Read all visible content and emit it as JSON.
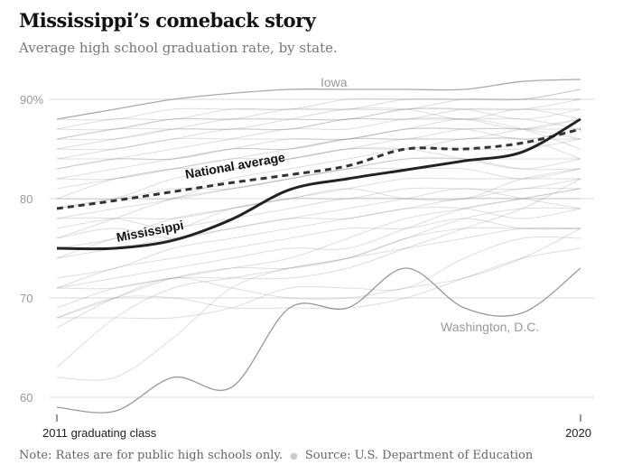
{
  "chart_data": {
    "type": "line",
    "title": "Mississippi’s comeback story",
    "subtitle": "Average high school graduation rate, by state.",
    "x": [
      2011,
      2012,
      2013,
      2014,
      2015,
      2016,
      2017,
      2018,
      2019,
      2020
    ],
    "x_tick_labels": [
      "2011 graduating class",
      "2020"
    ],
    "y_tick_labels": [
      "90%",
      "80",
      "70",
      "60"
    ],
    "y_ticks": [
      90,
      80,
      70,
      60
    ],
    "ylim": [
      57.5,
      93
    ],
    "grid": true,
    "highlighted": [
      {
        "name": "Mississippi",
        "label": "Mississippi",
        "values": [
          75,
          75,
          75.8,
          77.9,
          80.9,
          82,
          82.9,
          83.8,
          84.7,
          88
        ]
      },
      {
        "name": "National average",
        "label": "National average",
        "style": "dashed",
        "values": [
          79,
          79.8,
          80.7,
          81.6,
          82.4,
          83.3,
          85,
          85,
          85.6,
          87
        ]
      },
      {
        "name": "Iowa",
        "label": "Iowa",
        "values": [
          88,
          89,
          90,
          90.6,
          91,
          91,
          91,
          91,
          91.8,
          92
        ]
      },
      {
        "name": "Washington, D.C.",
        "label": "Washington, D.C.",
        "values": [
          59,
          58.6,
          62,
          61,
          69,
          69,
          73,
          69,
          68.5,
          73
        ]
      }
    ],
    "other_states": [
      [
        87,
        88,
        88,
        89,
        89,
        90,
        90,
        90,
        90,
        91
      ],
      [
        86,
        87,
        88,
        88,
        89,
        89,
        89,
        90,
        90,
        90
      ],
      [
        86,
        86,
        87,
        88,
        88,
        88,
        89,
        89,
        88,
        89
      ],
      [
        85,
        86,
        87,
        87,
        88,
        89,
        89,
        88,
        89,
        88
      ],
      [
        84,
        85,
        86,
        87,
        87,
        88,
        88,
        89,
        89,
        89
      ],
      [
        83,
        84,
        85,
        86,
        87,
        87,
        88,
        88,
        87,
        88
      ],
      [
        86,
        87,
        87,
        87,
        87,
        88,
        88,
        88,
        88,
        87
      ],
      [
        83,
        84,
        84,
        85,
        86,
        86,
        87,
        87,
        87,
        86
      ],
      [
        82,
        83,
        84,
        85,
        85,
        86,
        86,
        86,
        87,
        88
      ],
      [
        80,
        82,
        83,
        84,
        85,
        86,
        86,
        87,
        87,
        87
      ],
      [
        81,
        82,
        83,
        83,
        84,
        85,
        85,
        86,
        86,
        86
      ],
      [
        79,
        80,
        82,
        83,
        84,
        85,
        86,
        86,
        86,
        84
      ],
      [
        78,
        79,
        80,
        82,
        83,
        84,
        85,
        85,
        85,
        86
      ],
      [
        80,
        80,
        81,
        81,
        82,
        83,
        84,
        84,
        84,
        84
      ],
      [
        76,
        78,
        80,
        81,
        82,
        83,
        84,
        84,
        83,
        83
      ],
      [
        77,
        78,
        78,
        79,
        80,
        81,
        82,
        82,
        82,
        82
      ],
      [
        75,
        76,
        78,
        79,
        80,
        80,
        81,
        81,
        81,
        82
      ],
      [
        74,
        76,
        77,
        78,
        79,
        80,
        80,
        80,
        81,
        81
      ],
      [
        78,
        78,
        77,
        79,
        80,
        81,
        80,
        80,
        82,
        83
      ],
      [
        76,
        77,
        76,
        77,
        78,
        79,
        80,
        81,
        80,
        79
      ],
      [
        74,
        75,
        76,
        77,
        78,
        78,
        79,
        79,
        78,
        79
      ],
      [
        72,
        73,
        75,
        76,
        77,
        78,
        79,
        80,
        80,
        80
      ],
      [
        71,
        73,
        74,
        75,
        76,
        77,
        77,
        78,
        77,
        77
      ],
      [
        71,
        72,
        73,
        74,
        75,
        75,
        77,
        79,
        80,
        81
      ],
      [
        69,
        71,
        72,
        73,
        74,
        76,
        78,
        79,
        80,
        81
      ],
      [
        68,
        70,
        72,
        73,
        73,
        74,
        76,
        78,
        79,
        79
      ],
      [
        67,
        70,
        72,
        71,
        70,
        70,
        71,
        72,
        74,
        77
      ],
      [
        68,
        68,
        68,
        69,
        71,
        71,
        71,
        74,
        76,
        76
      ],
      [
        68,
        70,
        70,
        69,
        69,
        69,
        70,
        72,
        74,
        75
      ],
      [
        63,
        68,
        71,
        72,
        73,
        74,
        75,
        76,
        77,
        77
      ],
      [
        62,
        62,
        66,
        71,
        73,
        74,
        76,
        77,
        77,
        77
      ],
      [
        71,
        71,
        72,
        72,
        72,
        73,
        75,
        77,
        79,
        82
      ],
      [
        84,
        84,
        84,
        85,
        85,
        86,
        87,
        88,
        87,
        85
      ],
      [
        85,
        85,
        86,
        86,
        86,
        86,
        87,
        87,
        86,
        87
      ],
      [
        87,
        87,
        88,
        88,
        88,
        88,
        89,
        89,
        89,
        90
      ],
      [
        88,
        88,
        89,
        89,
        89,
        89,
        90,
        90,
        90,
        91
      ],
      [
        82,
        82,
        83,
        84,
        84,
        85,
        85,
        84,
        83,
        84
      ],
      [
        79,
        80,
        80,
        81,
        82,
        83,
        83,
        83,
        82,
        83
      ]
    ],
    "note": "Note: Rates are for public high schools only.",
    "source": "Source: U.S. Department of Education"
  }
}
